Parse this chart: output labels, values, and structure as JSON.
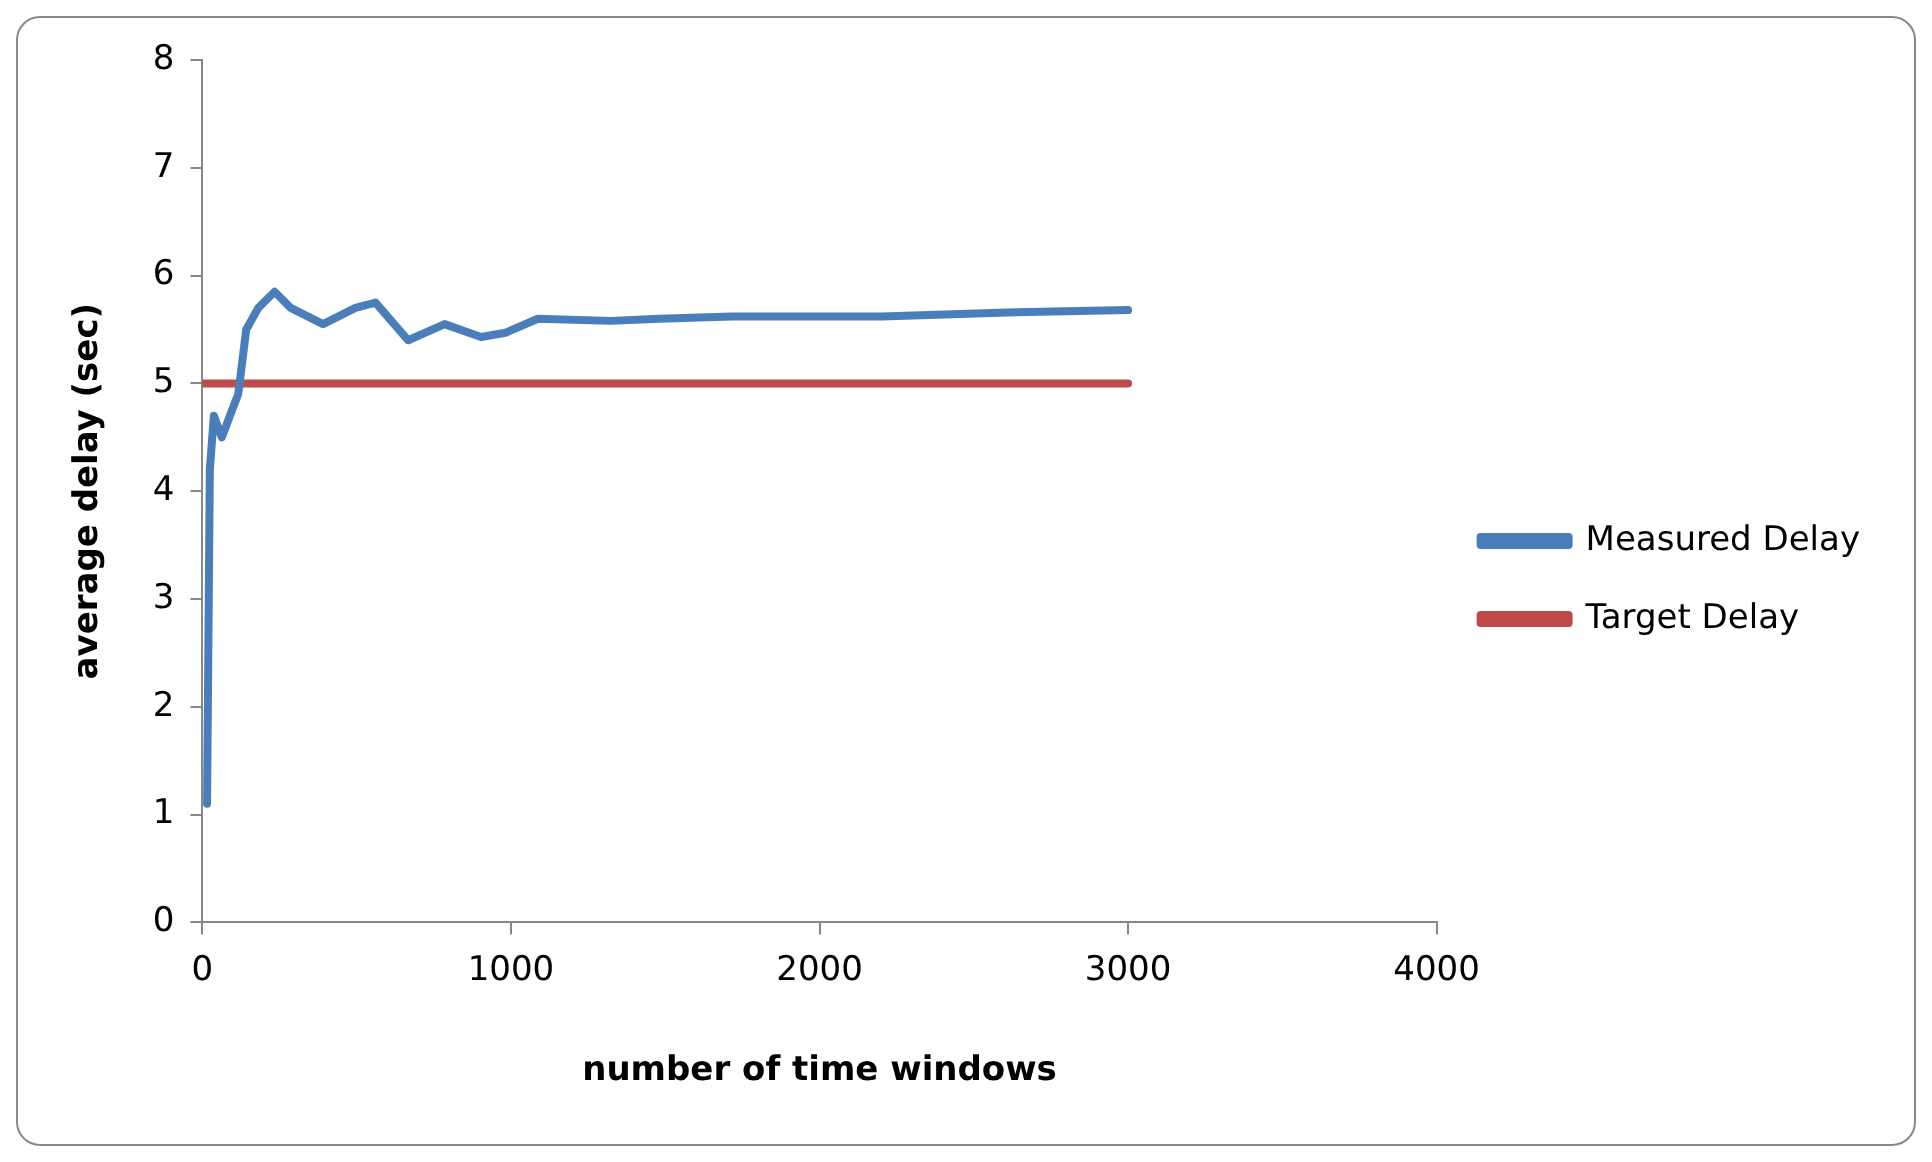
{
  "chart_data": {
    "type": "line",
    "xlabel": "number of time windows",
    "ylabel": "average delay (sec)",
    "xlim": [
      0,
      4000
    ],
    "xticks": [
      0,
      1000,
      2000,
      3000,
      4000
    ],
    "ylim": [
      0,
      8
    ],
    "yticks": [
      0,
      1,
      2,
      3,
      4,
      5,
      6,
      7,
      8
    ],
    "grid": false,
    "legend": "right",
    "marker": "none",
    "line_style": "solid",
    "series": [
      {
        "name": "Measured Delay",
        "color": "#4a7ebb",
        "x": [
          15,
          24,
          37,
          63,
          89,
          116,
          142,
          181,
          234,
          286,
          391,
          496,
          561,
          667,
          785,
          903,
          982,
          1087,
          1323,
          1480,
          1717,
          2200,
          2635,
          3000
        ],
        "values": [
          1.1,
          4.2,
          4.7,
          4.5,
          4.7,
          4.9,
          5.5,
          5.7,
          5.85,
          5.7,
          5.55,
          5.7,
          5.75,
          5.4,
          5.55,
          5.43,
          5.47,
          5.6,
          5.58,
          5.6,
          5.62,
          5.62,
          5.66,
          5.68
        ]
      },
      {
        "name": "Target Delay",
        "color": "#be4b48",
        "x": [
          0,
          3000
        ],
        "values": [
          5,
          5
        ]
      }
    ]
  }
}
